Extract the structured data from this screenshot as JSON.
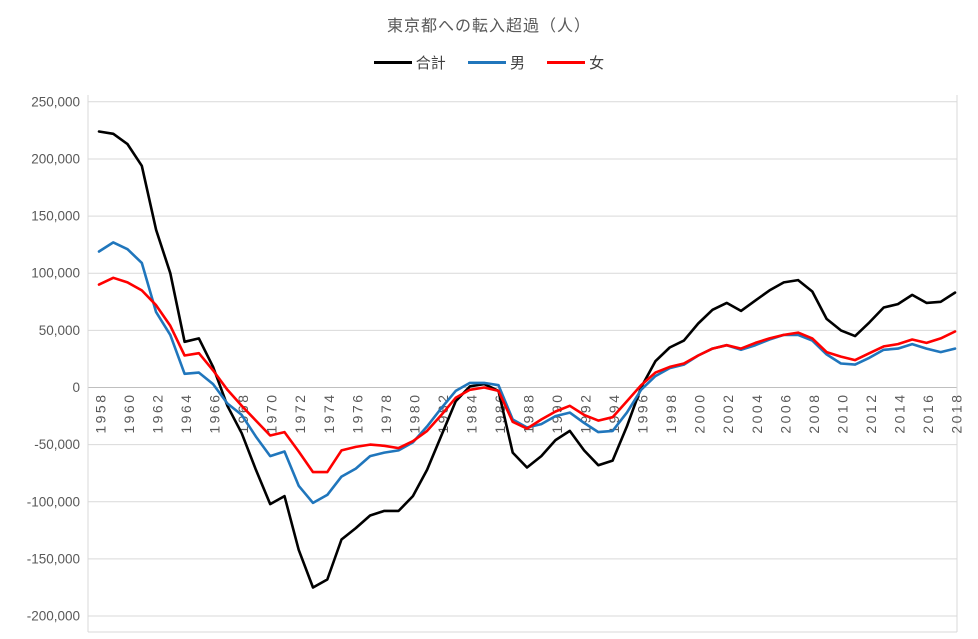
{
  "header": {
    "title": "東京都への転入超過（人）"
  },
  "legend": [
    {
      "key": "total",
      "label": "合計",
      "color": "#000000"
    },
    {
      "key": "male",
      "label": "男",
      "color": "#2076BC"
    },
    {
      "key": "female",
      "label": "女",
      "color": "#FF0000"
    }
  ],
  "colors": {
    "gridline": "#D9D9D9",
    "zero_line": "#BFBFBF",
    "plot_border": "#D9D9D9",
    "tick_label": "#595959",
    "title_text": "#595959"
  },
  "chart_data": {
    "type": "line",
    "title": "東京都への転入超過（人）",
    "xlabel": "",
    "ylabel": "",
    "grid": true,
    "legend_position": "top",
    "ylim": [
      -200000,
      250000
    ],
    "y_ticks": [
      250000,
      200000,
      150000,
      100000,
      50000,
      0,
      -50000,
      -100000,
      -150000,
      -200000
    ],
    "x_tick_labels": [
      "1958",
      "1960",
      "1962",
      "1964",
      "1966",
      "1968",
      "1970",
      "1972",
      "1974",
      "1976",
      "1978",
      "1980",
      "1982",
      "1984",
      "1986",
      "1988",
      "1990",
      "1992",
      "1994",
      "1996",
      "1998",
      "2000",
      "2002",
      "2004",
      "2006",
      "2008",
      "2010",
      "2012",
      "2014",
      "2016",
      "2018"
    ],
    "x": [
      1958,
      1959,
      1960,
      1961,
      1962,
      1963,
      1964,
      1965,
      1966,
      1967,
      1968,
      1969,
      1970,
      1971,
      1972,
      1973,
      1974,
      1975,
      1976,
      1977,
      1978,
      1979,
      1980,
      1981,
      1982,
      1983,
      1984,
      1985,
      1986,
      1987,
      1988,
      1989,
      1990,
      1991,
      1992,
      1993,
      1994,
      1995,
      1996,
      1997,
      1998,
      1999,
      2000,
      2001,
      2002,
      2003,
      2004,
      2005,
      2006,
      2007,
      2008,
      2009,
      2010,
      2011,
      2012,
      2013,
      2014,
      2015,
      2016,
      2017,
      2018
    ],
    "series": [
      {
        "key": "total",
        "name": "合計",
        "color": "#000000",
        "values": [
          224000,
          222000,
          213000,
          194000,
          138000,
          100000,
          40000,
          43000,
          18000,
          -16000,
          -40000,
          -72000,
          -102000,
          -95000,
          -142000,
          -175000,
          -168000,
          -133000,
          -123000,
          -112000,
          -108000,
          -108000,
          -95000,
          -72000,
          -42000,
          -12000,
          1000,
          3000,
          -3000,
          -57000,
          -70000,
          -60000,
          -46000,
          -38000,
          -55000,
          -68000,
          -64000,
          -34000,
          0,
          23000,
          35000,
          41000,
          56000,
          68000,
          74000,
          67000,
          76000,
          85000,
          92000,
          94000,
          84000,
          60000,
          50000,
          45000,
          57000,
          70000,
          73000,
          81000,
          74000,
          75000,
          83000
        ]
      },
      {
        "key": "male",
        "name": "男",
        "color": "#2076BC",
        "values": [
          119000,
          127000,
          121000,
          109000,
          66000,
          46000,
          12000,
          13000,
          3000,
          -14000,
          -24000,
          -43000,
          -60000,
          -56000,
          -86000,
          -101000,
          -94000,
          -78000,
          -71000,
          -60000,
          -57000,
          -55000,
          -48000,
          -34000,
          -18000,
          -3000,
          4000,
          4000,
          2000,
          -28000,
          -35000,
          -32000,
          -25000,
          -22000,
          -31000,
          -39000,
          -38000,
          -22000,
          -2000,
          10000,
          17000,
          20000,
          28000,
          34000,
          37000,
          33000,
          37000,
          42000,
          46000,
          46000,
          41000,
          29000,
          21000,
          20000,
          26000,
          33000,
          34000,
          38000,
          34000,
          31000,
          34000
        ]
      },
      {
        "key": "female",
        "name": "女",
        "color": "#FF0000",
        "values": [
          90000,
          96000,
          92000,
          85000,
          72000,
          54000,
          28000,
          30000,
          15000,
          -2000,
          -16000,
          -29000,
          -42000,
          -39000,
          -56000,
          -74000,
          -74000,
          -55000,
          -52000,
          -50000,
          -51000,
          -53000,
          -47000,
          -38000,
          -24000,
          -9000,
          -2000,
          0,
          -3000,
          -30000,
          -36000,
          -28000,
          -21000,
          -16000,
          -24000,
          -29000,
          -26000,
          -12000,
          2000,
          13000,
          18000,
          21000,
          28000,
          34000,
          37000,
          34000,
          39000,
          43000,
          46000,
          48000,
          43000,
          31000,
          27000,
          24000,
          30000,
          36000,
          38000,
          42000,
          39000,
          43000,
          49000
        ]
      }
    ]
  }
}
